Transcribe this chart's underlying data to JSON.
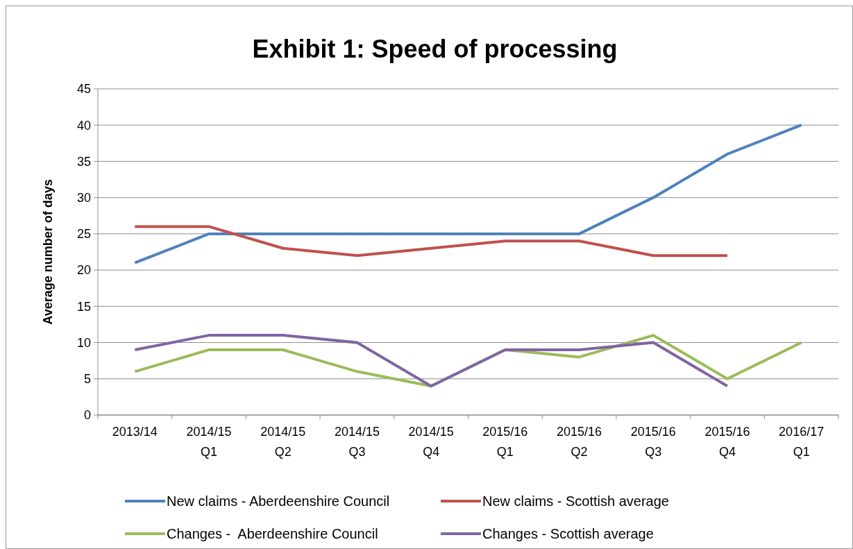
{
  "chart_data": {
    "type": "line",
    "title": "Exhibit 1: Speed of processing",
    "ylabel": "Average number of days",
    "categories": [
      "2013/14",
      "2014/15 Q1",
      "2014/15 Q2",
      "2014/15 Q3",
      "2014/15 Q4",
      "2015/16 Q1",
      "2015/16 Q2",
      "2015/16 Q3",
      "2015/16 Q4",
      "2016/17 Q1"
    ],
    "series": [
      {
        "name": "New claims - Aberdeenshire Council",
        "color": "#4f81bd",
        "values": [
          21,
          25,
          25,
          25,
          25,
          25,
          25,
          30,
          36,
          40
        ]
      },
      {
        "name": "New claims - Scottish average",
        "color": "#c0504d",
        "values": [
          26,
          26,
          23,
          22,
          23,
          24,
          24,
          22,
          22,
          null
        ]
      },
      {
        "name": "Changes -  Aberdeenshire Council",
        "color": "#9bbb59",
        "values": [
          6,
          9,
          9,
          6,
          4,
          9,
          8,
          11,
          5,
          10
        ]
      },
      {
        "name": "Changes - Scottish average",
        "color": "#8064a2",
        "values": [
          9,
          11,
          11,
          10,
          4,
          9,
          9,
          10,
          4,
          null
        ]
      }
    ],
    "ylim": [
      0,
      45
    ],
    "yticks": [
      0,
      5,
      10,
      15,
      20,
      25,
      30,
      35,
      40,
      45
    ],
    "grid": "y",
    "legend": "bottom",
    "marker": "none",
    "line_style": "solid"
  }
}
